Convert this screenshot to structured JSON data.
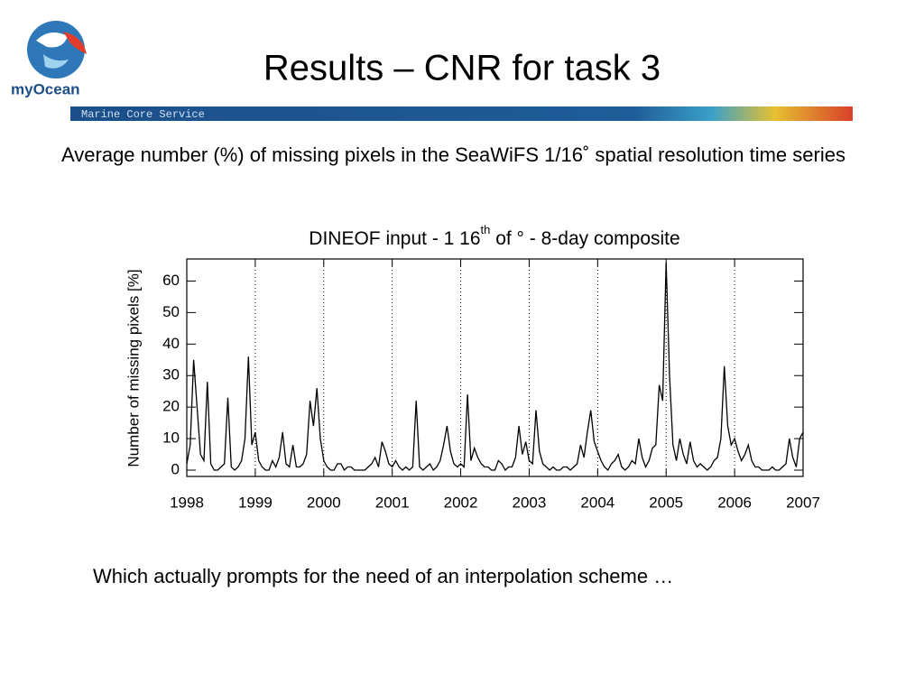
{
  "slide": {
    "title": "Results – CNR for task 3",
    "logo": "myOcean",
    "banner": "Marine Core Service",
    "description": "Average number (%) of missing pixels in the SeaWiFS 1/16˚ spatial resolution time series",
    "caption": "Which actually prompts for the need of an interpolation scheme …"
  },
  "chart_data": {
    "type": "line",
    "title": [
      "DINEOF input - 1 16",
      "th",
      " of ° - 8-day composite"
    ],
    "y_label": "Number of missing pixels [%]",
    "xlim": [
      1998,
      2007
    ],
    "xticks": [
      1998,
      1999,
      2000,
      2001,
      2002,
      2003,
      2004,
      2005,
      2006,
      2007
    ],
    "ylim": [
      -2,
      67
    ],
    "yticks": [
      0,
      10,
      20,
      30,
      40,
      50,
      60
    ],
    "grid": "x-dotted",
    "color": "#000000",
    "x": [
      1998,
      1998.05,
      1998.1,
      1998.15,
      1998.2,
      1998.25,
      1998.3,
      1998.35,
      1998.4,
      1998.45,
      1998.5,
      1998.55,
      1998.6,
      1998.65,
      1998.7,
      1998.75,
      1998.8,
      1998.85,
      1998.9,
      1998.95,
      1999,
      1999.05,
      1999.1,
      1999.15,
      1999.2,
      1999.25,
      1999.3,
      1999.35,
      1999.4,
      1999.45,
      1999.5,
      1999.55,
      1999.6,
      1999.65,
      1999.7,
      1999.75,
      1999.8,
      1999.85,
      1999.9,
      1999.95,
      2000,
      2000.05,
      2000.1,
      2000.15,
      2000.2,
      2000.25,
      2000.3,
      2000.35,
      2000.4,
      2000.45,
      2000.5,
      2000.55,
      2000.6,
      2000.65,
      2000.7,
      2000.75,
      2000.8,
      2000.85,
      2000.9,
      2000.95,
      2001,
      2001.05,
      2001.1,
      2001.15,
      2001.2,
      2001.25,
      2001.3,
      2001.35,
      2001.4,
      2001.45,
      2001.5,
      2001.55,
      2001.6,
      2001.65,
      2001.7,
      2001.75,
      2001.8,
      2001.85,
      2001.9,
      2001.95,
      2002,
      2002.05,
      2002.1,
      2002.15,
      2002.2,
      2002.25,
      2002.3,
      2002.35,
      2002.4,
      2002.45,
      2002.5,
      2002.55,
      2002.6,
      2002.65,
      2002.7,
      2002.75,
      2002.8,
      2002.85,
      2002.9,
      2002.95,
      2003,
      2003.05,
      2003.1,
      2003.15,
      2003.2,
      2003.25,
      2003.3,
      2003.35,
      2003.4,
      2003.45,
      2003.5,
      2003.55,
      2003.6,
      2003.65,
      2003.7,
      2003.75,
      2003.8,
      2003.85,
      2003.9,
      2003.95,
      2004,
      2004.05,
      2004.1,
      2004.15,
      2004.2,
      2004.25,
      2004.3,
      2004.35,
      2004.4,
      2004.45,
      2004.5,
      2004.55,
      2004.6,
      2004.65,
      2004.7,
      2004.75,
      2004.8,
      2004.85,
      2004.9,
      2004.95,
      2005,
      2005.05,
      2005.1,
      2005.15,
      2005.2,
      2005.25,
      2005.3,
      2005.35,
      2005.4,
      2005.45,
      2005.5,
      2005.55,
      2005.6,
      2005.65,
      2005.7,
      2005.75,
      2005.8,
      2005.85,
      2005.9,
      2005.95,
      2006,
      2006.05,
      2006.1,
      2006.15,
      2006.2,
      2006.25,
      2006.3,
      2006.35,
      2006.4,
      2006.45,
      2006.5,
      2006.55,
      2006.6,
      2006.65,
      2006.7,
      2006.75,
      2006.8,
      2006.85,
      2006.9,
      2006.95,
      2007
    ],
    "values": [
      2,
      8,
      35,
      20,
      5,
      3,
      28,
      2,
      0,
      0,
      1,
      2,
      23,
      1,
      0,
      1,
      3,
      10,
      36,
      8,
      12,
      3,
      1,
      0,
      0,
      3,
      1,
      4,
      12,
      2,
      1,
      8,
      1,
      1,
      2,
      5,
      22,
      14,
      26,
      10,
      3,
      1,
      0,
      0,
      2,
      2,
      0,
      1,
      1,
      0,
      0,
      0,
      0,
      1,
      2,
      4,
      1,
      9,
      6,
      2,
      1,
      3,
      1,
      0,
      1,
      0,
      1,
      22,
      1,
      0,
      1,
      2,
      0,
      1,
      3,
      8,
      14,
      6,
      2,
      1,
      2,
      1,
      24,
      3,
      7,
      4,
      2,
      1,
      1,
      0,
      0,
      3,
      2,
      0,
      1,
      1,
      4,
      14,
      5,
      9,
      3,
      2,
      19,
      6,
      2,
      1,
      0,
      1,
      0,
      0,
      1,
      1,
      0,
      1,
      2,
      8,
      4,
      12,
      19,
      9,
      6,
      3,
      1,
      0,
      2,
      3,
      5,
      1,
      0,
      1,
      3,
      2,
      10,
      4,
      1,
      3,
      7,
      8,
      27,
      22,
      66,
      30,
      8,
      3,
      10,
      5,
      2,
      9,
      3,
      1,
      2,
      1,
      0,
      1,
      3,
      4,
      10,
      33,
      14,
      8,
      10,
      6,
      3,
      5,
      8,
      3,
      1,
      1,
      0,
      0,
      0,
      1,
      0,
      0,
      1,
      2,
      10,
      4,
      1,
      10,
      12
    ]
  }
}
